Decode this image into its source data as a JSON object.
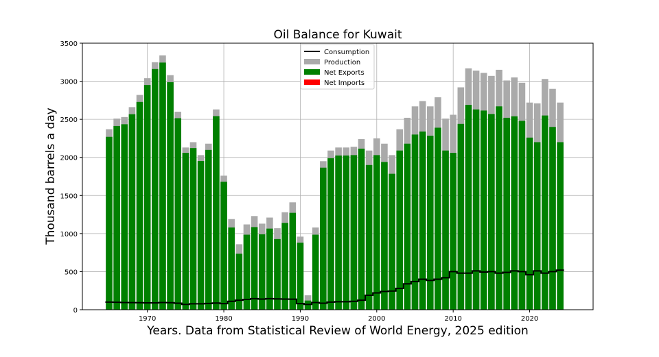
{
  "chart_data": {
    "type": "bar",
    "title": "Oil Balance for Kuwait",
    "xlabel": "Years. Data from Statistical Review of World Energy, 2025 edition",
    "ylabel": "Thousand barrels a day",
    "xlim": [
      1961.5,
      2028.3
    ],
    "ylim": [
      0,
      3500
    ],
    "xticks": [
      1970,
      1980,
      1990,
      2000,
      2010,
      2020
    ],
    "yticks": [
      0,
      500,
      1000,
      1500,
      2000,
      2500,
      3000,
      3500
    ],
    "grid": true,
    "legend_position": "top-center",
    "legend": [
      "Consumption",
      "Production",
      "Net Exports",
      "Net Imports"
    ],
    "colors": {
      "Consumption": "#000000",
      "Production": "#aaaaaa",
      "Net Exports": "#008000",
      "Net Imports": "#ff0000"
    },
    "years": [
      1965,
      1966,
      1967,
      1968,
      1969,
      1970,
      1971,
      1972,
      1973,
      1974,
      1975,
      1976,
      1977,
      1978,
      1979,
      1980,
      1981,
      1982,
      1983,
      1984,
      1985,
      1986,
      1987,
      1988,
      1989,
      1990,
      1991,
      1992,
      1993,
      1994,
      1995,
      1996,
      1997,
      1998,
      1999,
      2000,
      2001,
      2002,
      2003,
      2004,
      2005,
      2006,
      2007,
      2008,
      2009,
      2010,
      2011,
      2012,
      2013,
      2014,
      2015,
      2016,
      2017,
      2018,
      2019,
      2020,
      2021,
      2022,
      2023,
      2024
    ],
    "series": [
      {
        "name": "Production",
        "values": [
          2370,
          2510,
          2530,
          2660,
          2820,
          3040,
          3250,
          3340,
          3080,
          2600,
          2130,
          2200,
          2030,
          2180,
          2630,
          1760,
          1190,
          860,
          1120,
          1230,
          1130,
          1210,
          1070,
          1280,
          1410,
          960,
          190,
          1080,
          1950,
          2090,
          2130,
          2130,
          2140,
          2240,
          2090,
          2250,
          2180,
          2030,
          2370,
          2520,
          2670,
          2740,
          2670,
          2790,
          2510,
          2560,
          2920,
          3170,
          3140,
          3110,
          3070,
          3150,
          3010,
          3050,
          2980,
          2720,
          2710,
          3030,
          2900,
          2720
        ]
      },
      {
        "name": "Consumption",
        "values": [
          100,
          98,
          95,
          93,
          92,
          90,
          90,
          95,
          92,
          85,
          70,
          78,
          78,
          82,
          88,
          80,
          110,
          125,
          135,
          145,
          140,
          145,
          142,
          140,
          138,
          80,
          70,
          95,
          85,
          100,
          105,
          105,
          110,
          125,
          190,
          220,
          240,
          245,
          280,
          340,
          370,
          400,
          385,
          400,
          420,
          500,
          480,
          480,
          510,
          495,
          500,
          480,
          490,
          510,
          500,
          460,
          510,
          480,
          500,
          520
        ]
      },
      {
        "name": "Net Exports",
        "values": [
          2270,
          2412,
          2435,
          2567,
          2728,
          2950,
          3160,
          3245,
          2988,
          2515,
          2060,
          2122,
          1952,
          2098,
          2542,
          1680,
          1080,
          735,
          985,
          1085,
          990,
          1065,
          928,
          1140,
          1272,
          880,
          120,
          985,
          1865,
          1990,
          2025,
          2025,
          2030,
          2115,
          1900,
          2030,
          1940,
          1785,
          2090,
          2180,
          2300,
          2340,
          2285,
          2390,
          2090,
          2060,
          2440,
          2690,
          2630,
          2615,
          2570,
          2670,
          2520,
          2540,
          2480,
          2260,
          2200,
          2550,
          2400,
          2200
        ]
      },
      {
        "name": "Net Imports",
        "values": []
      }
    ]
  }
}
